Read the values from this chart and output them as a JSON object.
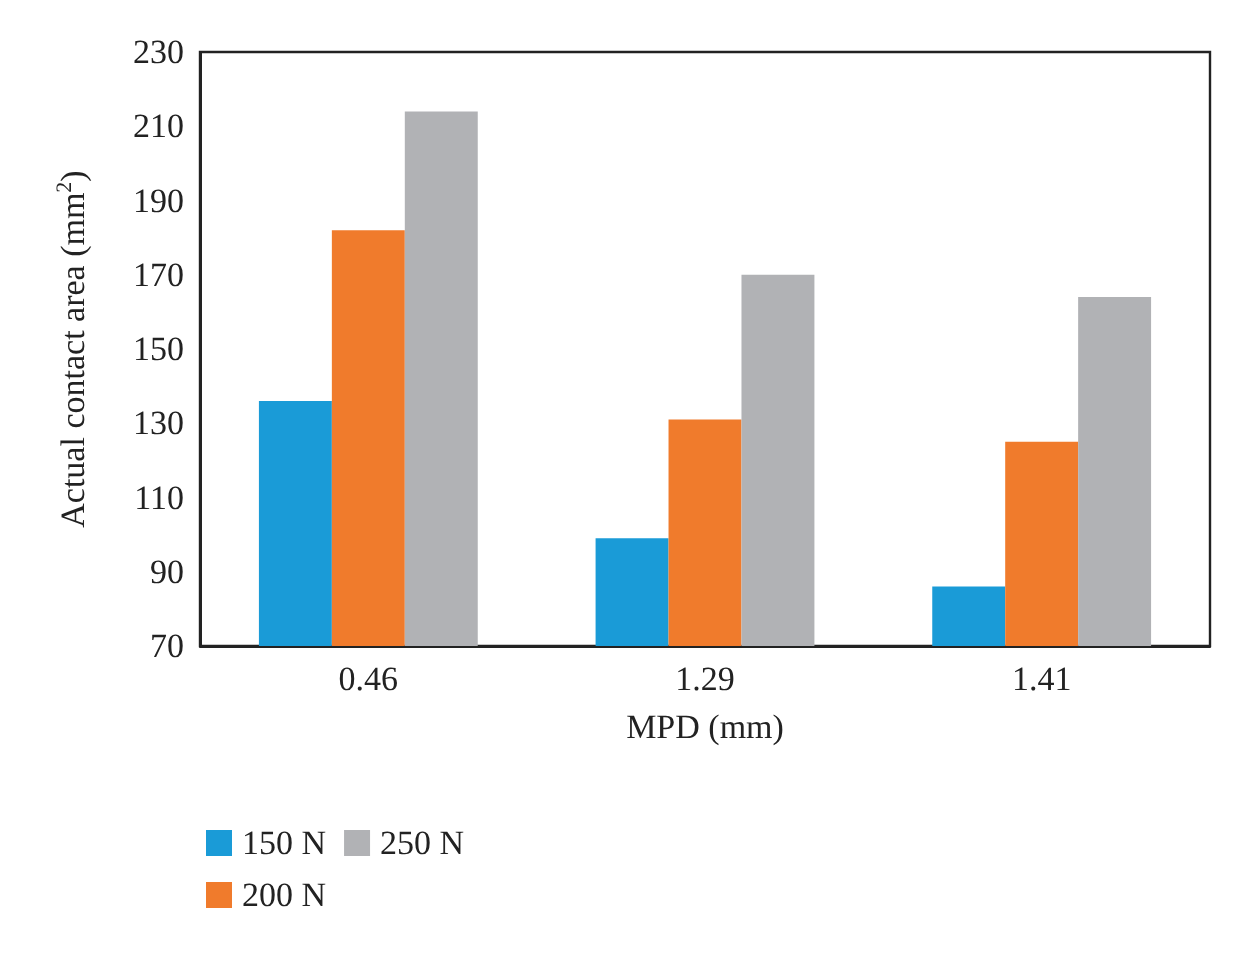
{
  "chart_data": {
    "type": "bar",
    "xlabel": "MPD (mm)",
    "ylabel": "Actual contact area (mm$^{2}$)",
    "categories": [
      "0.46",
      "1.29",
      "1.41"
    ],
    "series": [
      {
        "name": "150 N",
        "color": "#1a9bd7",
        "values": [
          136,
          99,
          86
        ]
      },
      {
        "name": "200 N",
        "color": "#f07b2c",
        "values": [
          182,
          131,
          125
        ]
      },
      {
        "name": "250 N",
        "color": "#b1b2b5",
        "values": [
          214,
          170,
          164
        ]
      }
    ],
    "ylim": [
      70,
      230
    ],
    "yticks": [
      70,
      90,
      110,
      130,
      150,
      170,
      190,
      210,
      230
    ],
    "grid": false,
    "legend": "bottom left"
  }
}
